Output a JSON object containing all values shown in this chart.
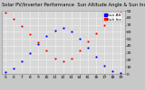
{
  "title": "Solar PV/Inverter Performance  Sun Altitude Angle & Sun Incidence Angle on PV Panels",
  "bg_color": "#c8c8c8",
  "plot_bg": "#d8d8d8",
  "grid_color": "#ffffff",
  "blue_color": "#0000ff",
  "red_color": "#ff0000",
  "legend_blue_label": "Sun Alt",
  "legend_red_label": "Sun Inc",
  "ylim": [
    0,
    90
  ],
  "yticks": [
    0,
    10,
    20,
    30,
    40,
    50,
    60,
    70,
    80,
    90
  ],
  "ytick_labels": [
    "0",
    "10",
    "20",
    "30",
    "40",
    "50",
    "60",
    "70",
    "80",
    "90"
  ],
  "time_hours": [
    5,
    6,
    7,
    8,
    9,
    10,
    11,
    12,
    13,
    14,
    15,
    16,
    17,
    18,
    19
  ],
  "sun_altitude": [
    2,
    8,
    18,
    30,
    42,
    54,
    62,
    65,
    60,
    50,
    37,
    24,
    12,
    4,
    1
  ],
  "sun_incidence": [
    87,
    78,
    68,
    57,
    45,
    33,
    22,
    18,
    22,
    33,
    46,
    58,
    70,
    80,
    88
  ],
  "xtick_labels": [
    "5",
    "6",
    "7",
    "8",
    "9",
    "10",
    "11",
    "12",
    "13",
    "14",
    "15",
    "16",
    "17",
    "18",
    "19"
  ],
  "title_fontsize": 3.8,
  "tick_fontsize": 3.2,
  "legend_fontsize": 3.2,
  "dot_size": 2.5
}
